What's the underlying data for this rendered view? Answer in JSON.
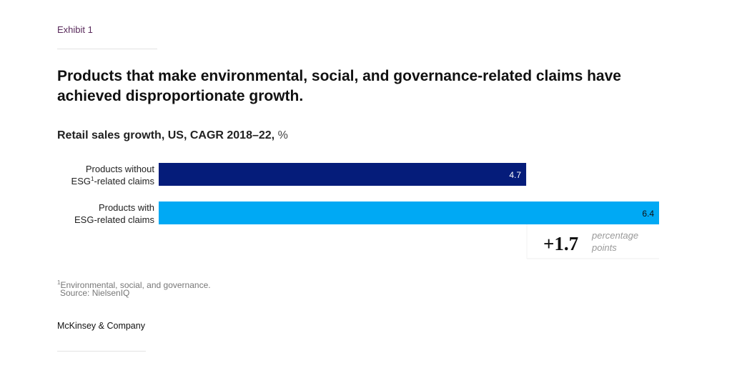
{
  "exhibit": "Exhibit 1",
  "headline": "Products that make environmental, social, and governance-related claims have achieved disproportionate growth.",
  "subtitle": {
    "main": "Retail sales growth, US, CAGR 2018–22, ",
    "unit": "%"
  },
  "chart_data": {
    "type": "bar",
    "orientation": "horizontal",
    "title": "Retail sales growth, US, CAGR 2018–22, %",
    "categories": [
      {
        "line1": "Products without",
        "line2": "ESG",
        "line2_sup": "1",
        "line2_rest": "-related claims"
      },
      {
        "line1": "Products with",
        "line2": "ESG-related claims",
        "line2_sup": "",
        "line2_rest": ""
      }
    ],
    "values": [
      4.7,
      6.4
    ],
    "value_labels": [
      "4.7",
      "6.4"
    ],
    "colors": [
      "#051c7a",
      "#00a9f4"
    ],
    "label_colors": [
      "#ffffff",
      "#111111"
    ],
    "xlim": [
      0,
      6.4
    ],
    "annotation": {
      "value": "+1.7",
      "text_line1": "percentage",
      "text_line2": "points"
    }
  },
  "footnote": {
    "marker": "1",
    "text": "Environmental, social, and governance."
  },
  "source": "Source: NielsenIQ",
  "brand": "McKinsey & Company"
}
